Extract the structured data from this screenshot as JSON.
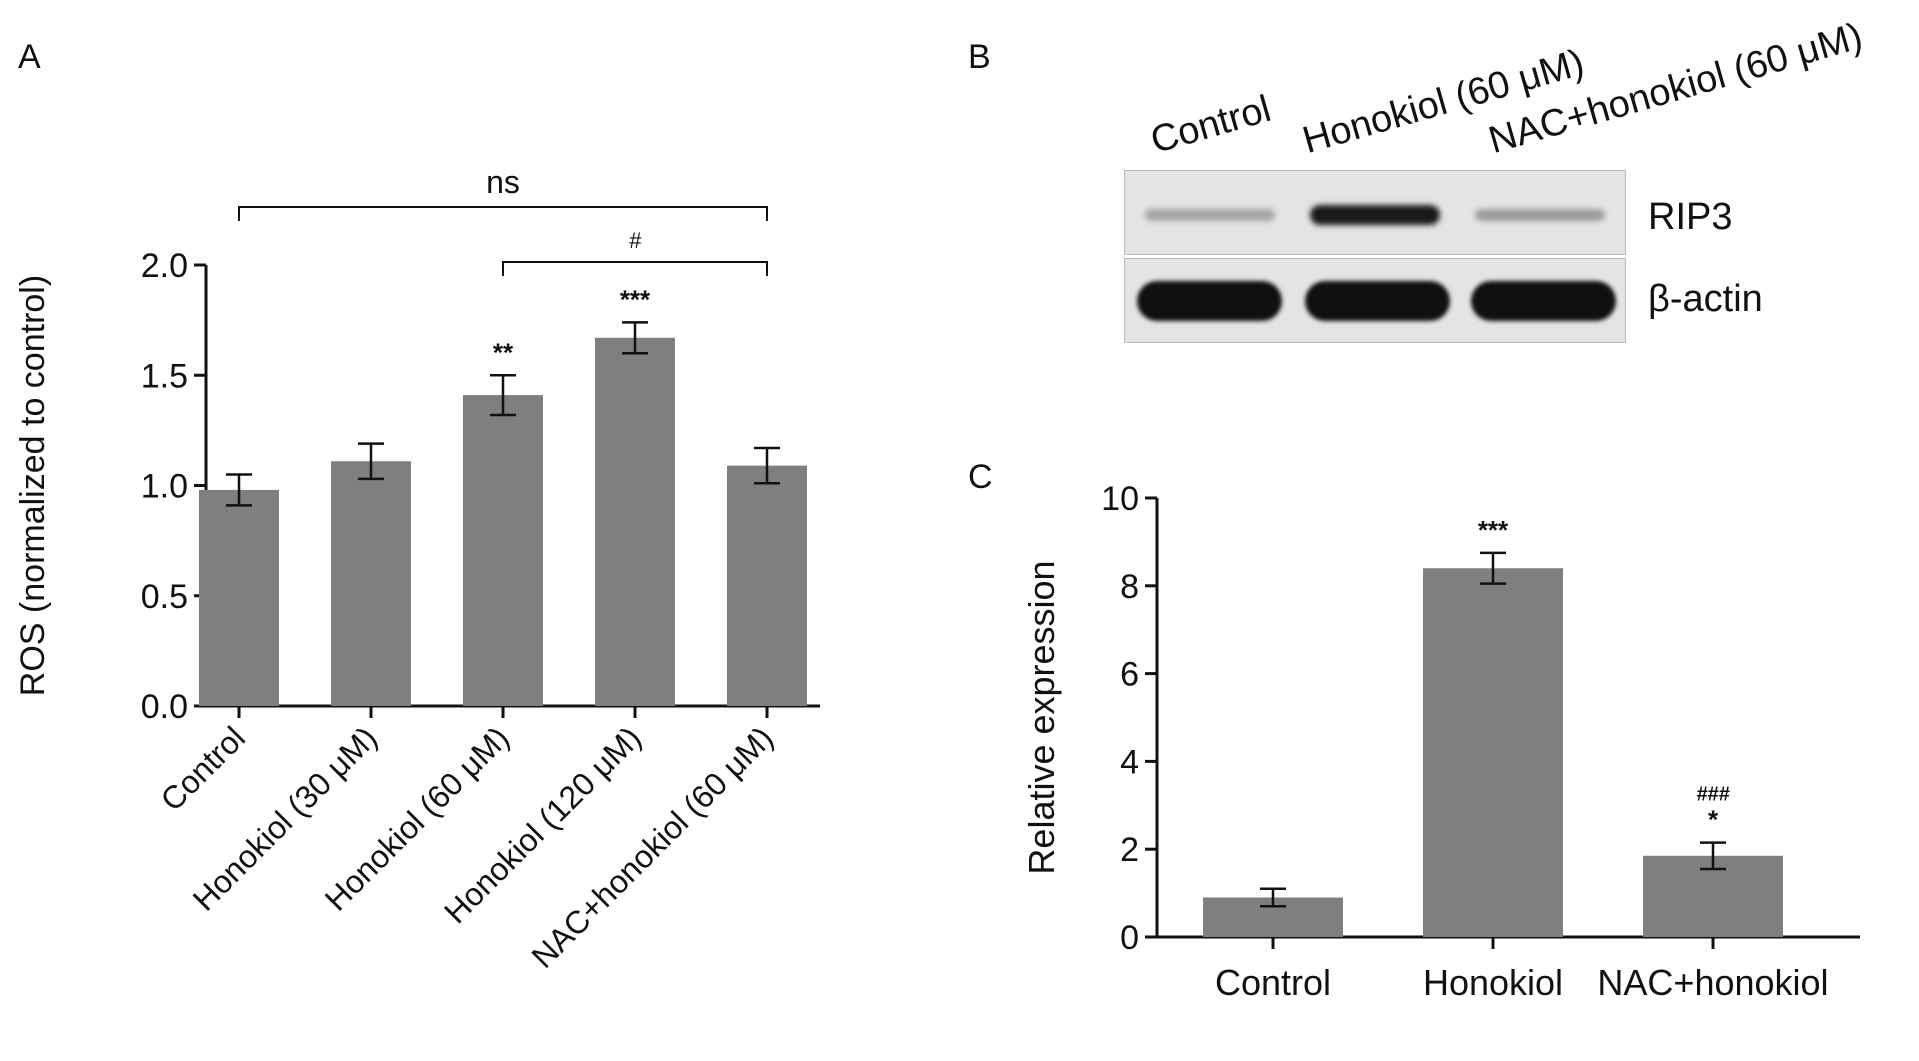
{
  "panels": {
    "a": "A",
    "b": "B",
    "c": "C"
  },
  "colors": {
    "bar": "#7f7f7f",
    "axis": "#111111",
    "band": "#1a1a1a"
  },
  "chart_data": [
    {
      "id": "A",
      "type": "bar",
      "categories": [
        "Control",
        "Honokiol (30 μM)",
        "Honokiol (60 μM)",
        "Honokiol (120 μM)",
        "NAC+honokiol (60 μM)"
      ],
      "values": [
        0.98,
        1.11,
        1.41,
        1.67,
        1.09
      ],
      "errors": [
        0.07,
        0.08,
        0.09,
        0.07,
        0.08
      ],
      "ylabel": "ROS (normalized to control)",
      "ylim": [
        0,
        2.0
      ],
      "yticks": [
        "0.0",
        "0.5",
        "1.0",
        "1.5",
        "2.0"
      ],
      "bar_annotations": [
        "",
        "",
        "**",
        "***",
        ""
      ],
      "brackets": [
        {
          "from": 0,
          "to": 4,
          "label": "ns"
        },
        {
          "from": 2,
          "to": 4,
          "label": "#"
        }
      ],
      "grid": false
    },
    {
      "id": "C",
      "type": "bar",
      "categories": [
        "Control",
        "Honokiol",
        "NAC+honokiol"
      ],
      "values": [
        0.9,
        8.4,
        1.85
      ],
      "errors": [
        0.2,
        0.35,
        0.3
      ],
      "ylabel": "Relative expression",
      "ylim": [
        0,
        10
      ],
      "yticks": [
        "0",
        "2",
        "4",
        "6",
        "8",
        "10"
      ],
      "bar_annotations": [
        "",
        "***",
        "###\n*"
      ],
      "grid": false
    }
  ],
  "blot": {
    "lanes": [
      "Control",
      "Honokiol (60 μM)",
      "NAC+honokiol (60 μM)"
    ],
    "rows": [
      {
        "label": "RIP3",
        "intensity": [
          0.25,
          0.95,
          0.3
        ]
      },
      {
        "label": "β-actin",
        "intensity": [
          1.0,
          1.0,
          1.0
        ]
      }
    ]
  }
}
